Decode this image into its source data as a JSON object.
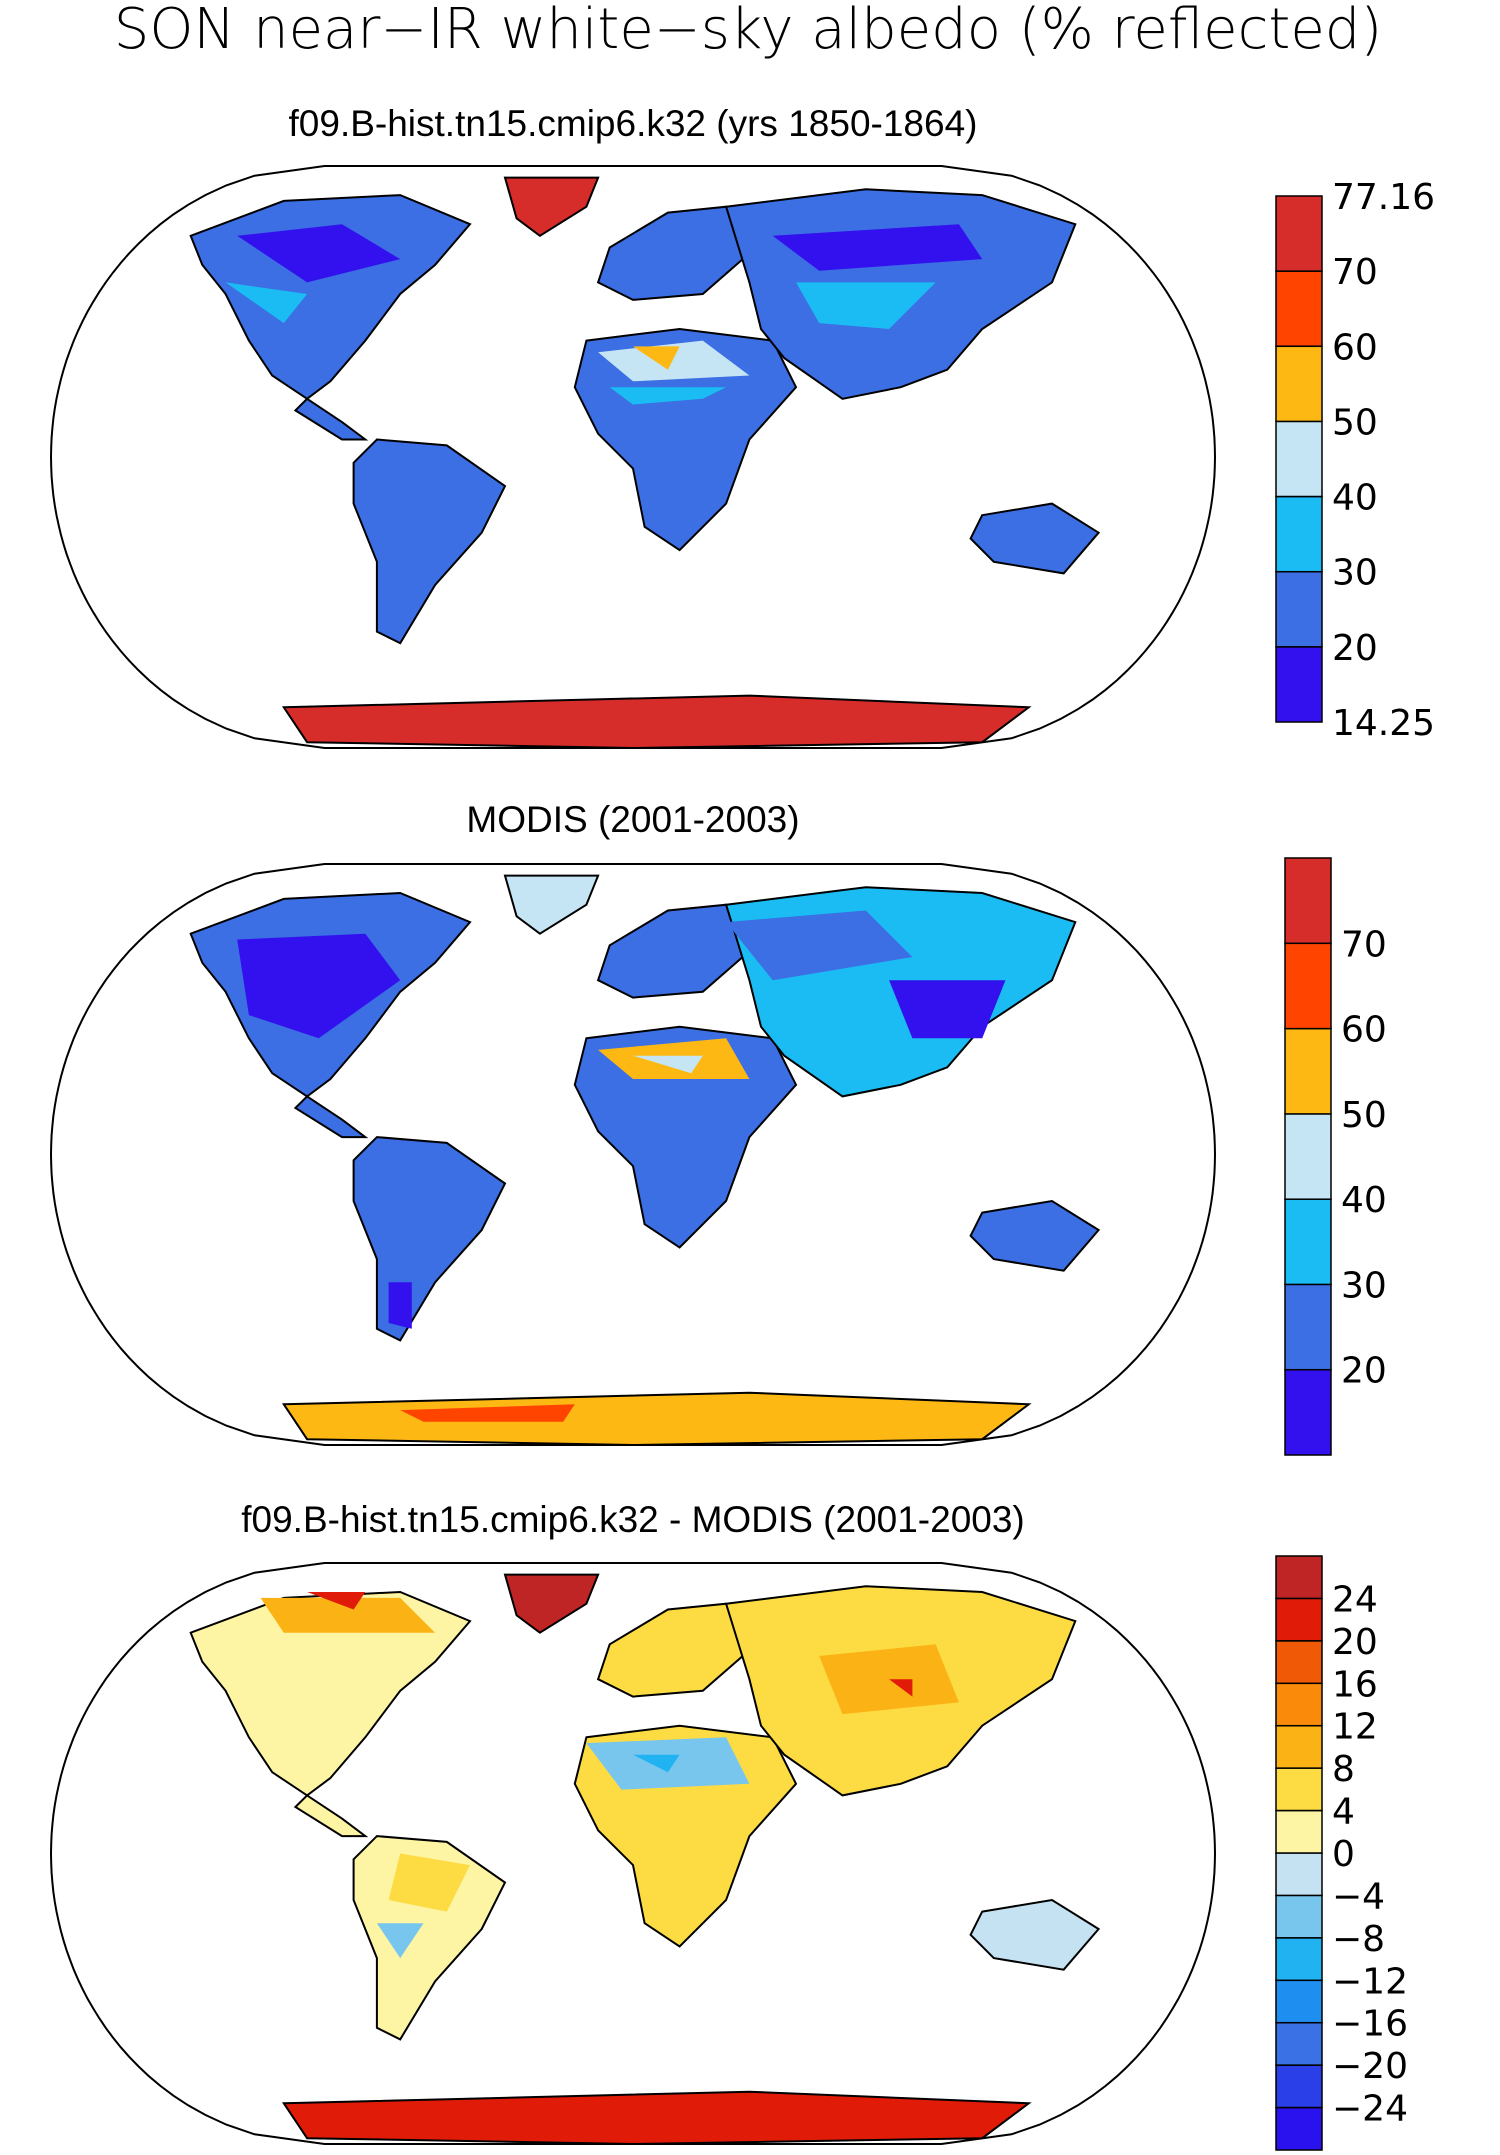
{
  "title": "SON near−IR white−sky albedo (% reflected)",
  "panels": [
    {
      "title": "f09.B-hist.tn15.cmip6.k32 (yrs 1850-1864)",
      "colorbar": {
        "colors": [
          "#3311ee",
          "#3b6fe3",
          "#1bbcf3",
          "#c6e5f4",
          "#fdb813",
          "#ff4400",
          "#d62d2a"
        ],
        "labels": [
          {
            "text": "77.16",
            "at": 7
          },
          {
            "text": "70",
            "at": 6
          },
          {
            "text": "60",
            "at": 5
          },
          {
            "text": "50",
            "at": 4
          },
          {
            "text": "40",
            "at": 3
          },
          {
            "text": "30",
            "at": 2
          },
          {
            "text": "20",
            "at": 1
          },
          {
            "text": "14.25",
            "at": 0
          }
        ]
      },
      "scheme": "model"
    },
    {
      "title": "MODIS (2001-2003)",
      "colorbar": {
        "colors": [
          "#3311ee",
          "#3b6fe3",
          "#1bbcf3",
          "#c6e5f4",
          "#fdb813",
          "#ff4400",
          "#d62d2a"
        ],
        "labels": [
          {
            "text": "70",
            "at": 6
          },
          {
            "text": "60",
            "at": 5
          },
          {
            "text": "50",
            "at": 4
          },
          {
            "text": "40",
            "at": 3
          },
          {
            "text": "30",
            "at": 2
          },
          {
            "text": "20",
            "at": 1
          }
        ]
      },
      "scheme": "obs"
    },
    {
      "title": "f09.B-hist.tn15.cmip6.k32 - MODIS (2001-2003)",
      "colorbar": {
        "colors": [
          "#2a12ee",
          "#2b3fe8",
          "#3a72e6",
          "#1e8ff0",
          "#21b2f2",
          "#78c6ee",
          "#c4e2f2",
          "#fdf5a3",
          "#fddb43",
          "#fbb215",
          "#f98a0a",
          "#f05a06",
          "#e01b08",
          "#c02525"
        ],
        "labels": [
          {
            "text": "24",
            "at": 13
          },
          {
            "text": "20",
            "at": 12
          },
          {
            "text": "16",
            "at": 11
          },
          {
            "text": "12",
            "at": 10
          },
          {
            "text": "8",
            "at": 9
          },
          {
            "text": "4",
            "at": 8
          },
          {
            "text": "0",
            "at": 7
          },
          {
            "text": "−4",
            "at": 6
          },
          {
            "text": "−8",
            "at": 5
          },
          {
            "text": "−12",
            "at": 4
          },
          {
            "text": "−16",
            "at": 3
          },
          {
            "text": "−20",
            "at": 2
          },
          {
            "text": "−24",
            "at": 1
          }
        ]
      },
      "scheme": "diff"
    }
  ]
}
